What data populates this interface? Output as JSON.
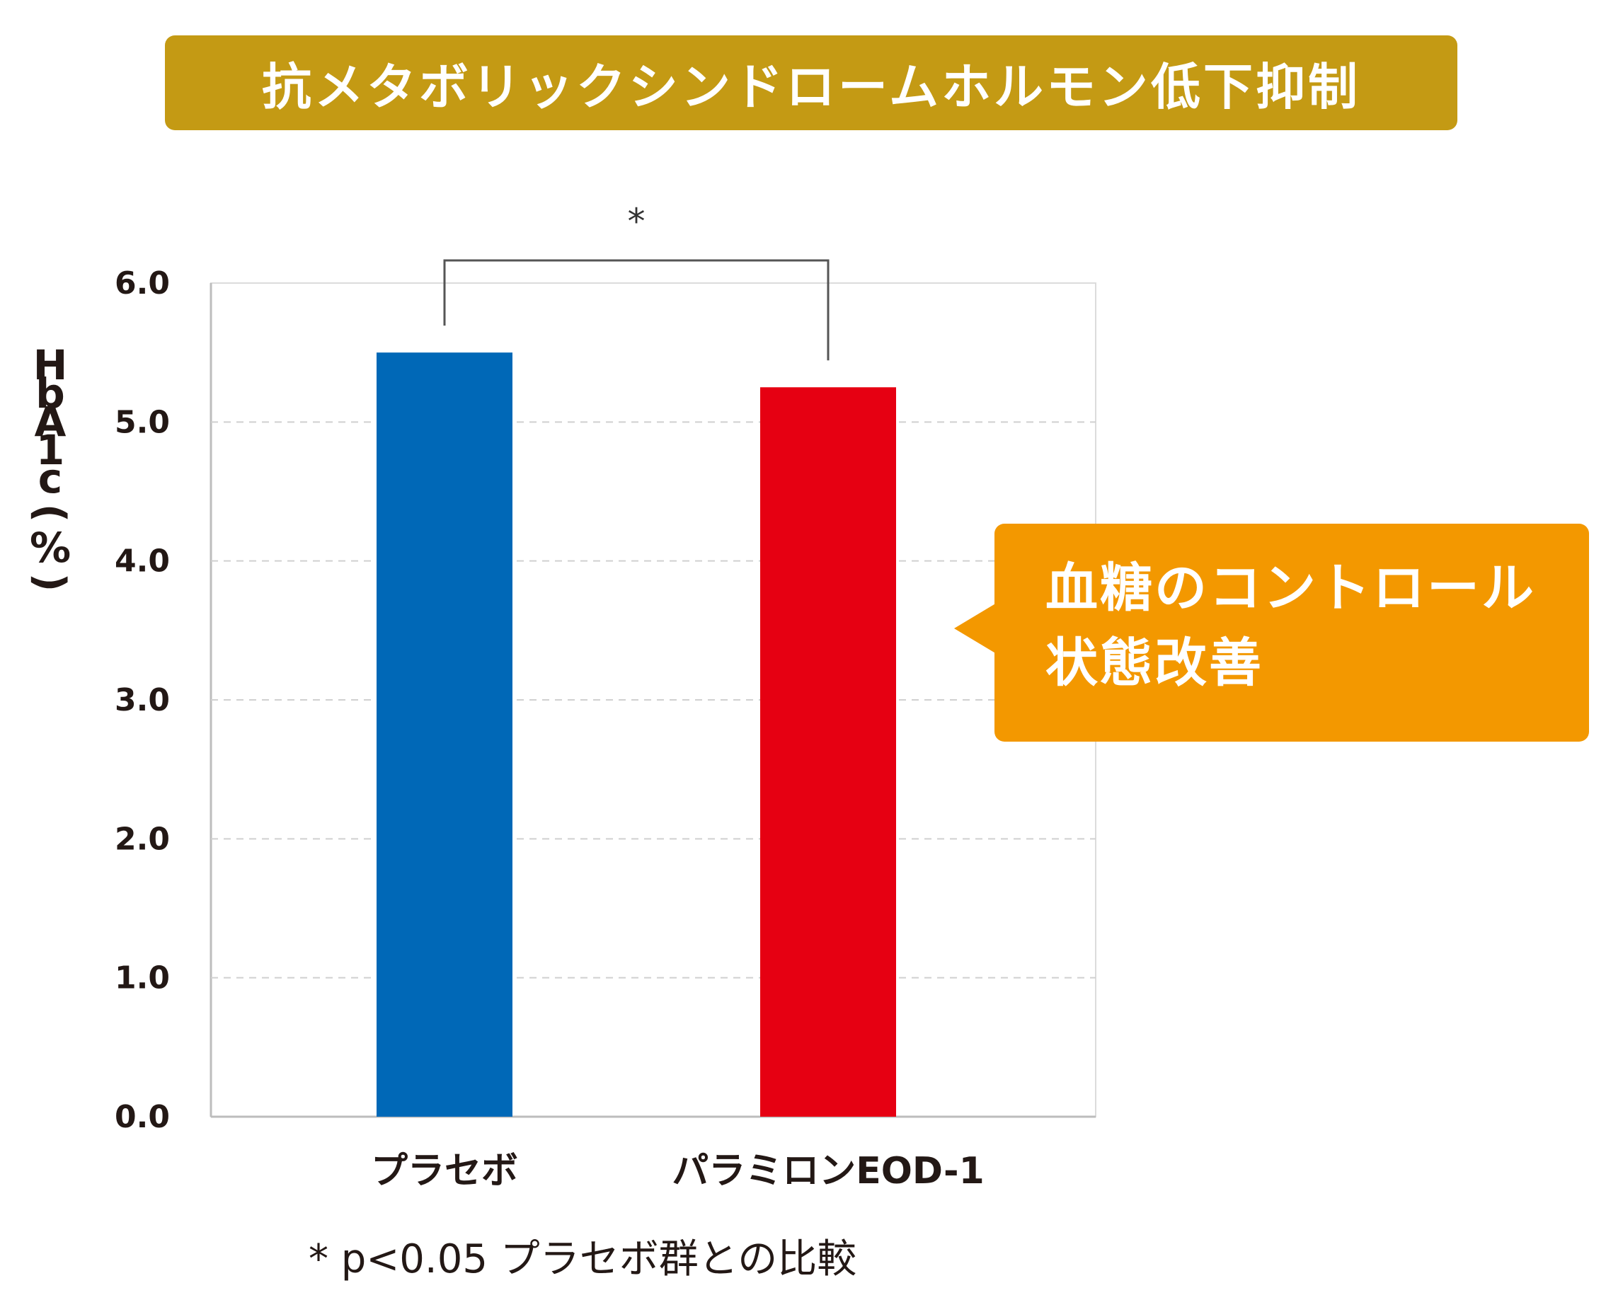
{
  "colors": {
    "title_bg": "#c49a14",
    "callout_bg": "#f39800",
    "placebo_bar": "#0068b7",
    "treatment_bar": "#e60012",
    "gridline": "#d0d0d0",
    "axis": "#bdbdbd"
  },
  "banner": {
    "title": "抗メタボリックシンドロームホルモン低下抑制"
  },
  "callout": {
    "line1": "血糖のコントロール",
    "line2": "状態改善"
  },
  "footnote": "* p<0.05 プラセボ群との比較",
  "chart_data": {
    "type": "bar",
    "title": "",
    "ylabel_chars": [
      "H",
      "b",
      "A",
      "1",
      "c",
      "(",
      "%",
      ")"
    ],
    "ylabel": "HbA1c(%)",
    "xlabel": "",
    "categories": [
      "プラセボ",
      "パラミロンEOD-1"
    ],
    "values": [
      5.5,
      5.25
    ],
    "bar_colors": [
      "#0068b7",
      "#e60012"
    ],
    "ylim": [
      0,
      6
    ],
    "yticks": [
      "0.0",
      "1.0",
      "2.0",
      "3.0",
      "4.0",
      "5.0",
      "6.0"
    ],
    "grid": true,
    "significance": {
      "between": [
        0,
        1
      ],
      "label": "*"
    }
  }
}
